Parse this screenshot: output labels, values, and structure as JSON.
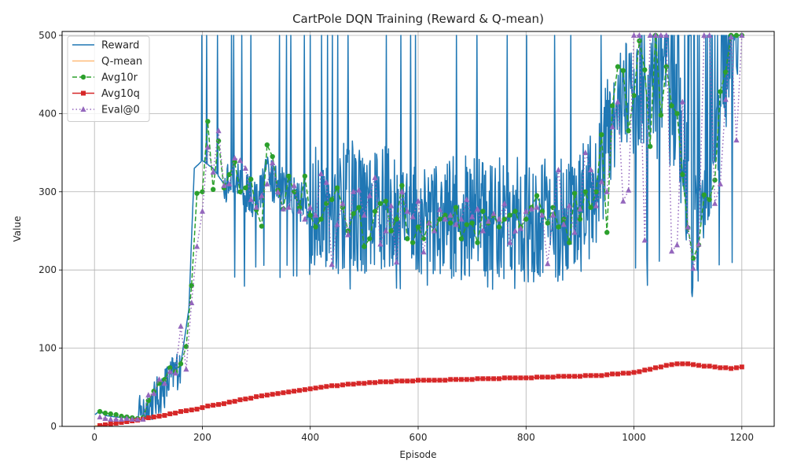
{
  "chart_data": {
    "type": "line",
    "title": "CartPole DQN Training (Reward & Q-mean)",
    "xlabel": "Episode",
    "ylabel": "Value",
    "xlim": [
      -60,
      1260
    ],
    "ylim": [
      0,
      505
    ],
    "xticks": [
      0,
      200,
      400,
      600,
      800,
      1000,
      1200
    ],
    "yticks": [
      0,
      100,
      200,
      300,
      400,
      500
    ],
    "grid": true,
    "legend_position": "top-left",
    "series": [
      {
        "name": "Reward",
        "color": "#1f77b4",
        "style": "solid",
        "anchors": [
          [
            1,
            15
          ],
          [
            10,
            20
          ],
          [
            20,
            14
          ],
          [
            40,
            12
          ],
          [
            60,
            11
          ],
          [
            80,
            10
          ],
          [
            100,
            25
          ],
          [
            120,
            40
          ],
          [
            140,
            60
          ],
          [
            160,
            80
          ],
          [
            175,
            150
          ],
          [
            185,
            330
          ],
          [
            200,
            340
          ],
          [
            220,
            330
          ],
          [
            240,
            310
          ],
          [
            260,
            315
          ],
          [
            280,
            300
          ],
          [
            300,
            285
          ],
          [
            320,
            320
          ],
          [
            340,
            310
          ],
          [
            360,
            300
          ],
          [
            380,
            290
          ],
          [
            400,
            280
          ],
          [
            420,
            285
          ],
          [
            440,
            275
          ],
          [
            460,
            280
          ],
          [
            480,
            285
          ],
          [
            500,
            275
          ],
          [
            520,
            280
          ],
          [
            540,
            285
          ],
          [
            560,
            270
          ],
          [
            580,
            275
          ],
          [
            600,
            265
          ],
          [
            620,
            260
          ],
          [
            640,
            270
          ],
          [
            660,
            265
          ],
          [
            680,
            270
          ],
          [
            700,
            268
          ],
          [
            720,
            262
          ],
          [
            740,
            270
          ],
          [
            760,
            265
          ],
          [
            780,
            268
          ],
          [
            800,
            262
          ],
          [
            820,
            260
          ],
          [
            840,
            265
          ],
          [
            860,
            262
          ],
          [
            880,
            268
          ],
          [
            900,
            275
          ],
          [
            920,
            300
          ],
          [
            940,
            330
          ],
          [
            960,
            400
          ],
          [
            980,
            430
          ],
          [
            1000,
            420
          ],
          [
            1020,
            440
          ],
          [
            1040,
            390
          ],
          [
            1060,
            420
          ],
          [
            1080,
            390
          ],
          [
            1100,
            300
          ],
          [
            1110,
            230
          ],
          [
            1120,
            260
          ],
          [
            1140,
            320
          ],
          [
            1160,
            380
          ],
          [
            1180,
            470
          ],
          [
            1200,
            500
          ]
        ],
        "noise": [
          0,
          100,
          1,
          100,
          100,
          300,
          300,
          250,
          290,
          290,
          290,
          290,
          300,
          300,
          190
        ],
        "values_summary": "per-episode reward, range approx 9 to 500"
      },
      {
        "name": "Q-mean",
        "color": "#ffbb78",
        "style": "solid",
        "anchors": [
          [
            1,
            1
          ],
          [
            20,
            1
          ],
          [
            100,
            11
          ],
          [
            200,
            25
          ],
          [
            300,
            38
          ],
          [
            400,
            48
          ],
          [
            500,
            55
          ],
          [
            600,
            58
          ],
          [
            700,
            60
          ],
          [
            800,
            62
          ],
          [
            900,
            64
          ],
          [
            950,
            66
          ],
          [
            1000,
            69
          ],
          [
            1040,
            74
          ],
          [
            1070,
            80
          ],
          [
            1090,
            80
          ],
          [
            1110,
            78
          ],
          [
            1150,
            76
          ],
          [
            1180,
            74
          ],
          [
            1200,
            76
          ]
        ]
      },
      {
        "name": "Avg10r",
        "color": "#2ca02c",
        "style": "dashed",
        "marker": "circle",
        "x": [
          10,
          20,
          30,
          40,
          50,
          60,
          70,
          80,
          90,
          100,
          110,
          120,
          130,
          140,
          150,
          160,
          170,
          180,
          190,
          200,
          210,
          220,
          230,
          240,
          250,
          260,
          270,
          280,
          290,
          300,
          310,
          320,
          330,
          340,
          350,
          360,
          370,
          380,
          390,
          400,
          410,
          420,
          430,
          440,
          450,
          460,
          470,
          480,
          490,
          500,
          510,
          520,
          530,
          540,
          550,
          560,
          570,
          580,
          590,
          600,
          610,
          620,
          630,
          640,
          650,
          660,
          670,
          680,
          690,
          700,
          710,
          720,
          730,
          740,
          750,
          760,
          770,
          780,
          790,
          800,
          810,
          820,
          830,
          840,
          850,
          860,
          870,
          880,
          890,
          900,
          910,
          920,
          930,
          940,
          950,
          960,
          970,
          980,
          990,
          1000,
          1010,
          1020,
          1030,
          1040,
          1050,
          1060,
          1070,
          1080,
          1090,
          1100,
          1110,
          1120,
          1130,
          1140,
          1150,
          1160,
          1170,
          1180,
          1190,
          1200
        ],
        "values": [
          19,
          17,
          16,
          15,
          13,
          12,
          11,
          10,
          11,
          33,
          45,
          55,
          60,
          75,
          70,
          80,
          102,
          180,
          298,
          300,
          390,
          303,
          365,
          305,
          322,
          338,
          300,
          305,
          316,
          277,
          256,
          360,
          345,
          302,
          278,
          320,
          300,
          280,
          320,
          270,
          255,
          265,
          285,
          290,
          305,
          280,
          250,
          272,
          280,
          230,
          240,
          275,
          285,
          288,
          250,
          265,
          308,
          240,
          235,
          255,
          240,
          260,
          250,
          265,
          270,
          260,
          280,
          240,
          258,
          260,
          235,
          275,
          260,
          270,
          255,
          265,
          270,
          275,
          255,
          265,
          280,
          295,
          275,
          260,
          280,
          255,
          265,
          235,
          298,
          265,
          300,
          280,
          300,
          373,
          248,
          410,
          460,
          455,
          378,
          423,
          493,
          456,
          358,
          500,
          398,
          460,
          410,
          400,
          322,
          254,
          215,
          232,
          296,
          290,
          315,
          428,
          453,
          500,
          500,
          500
        ]
      },
      {
        "name": "Avg10q",
        "color": "#d62728",
        "style": "solid",
        "marker": "square",
        "x": [
          10,
          20,
          30,
          40,
          50,
          60,
          70,
          80,
          90,
          100,
          110,
          120,
          130,
          140,
          150,
          160,
          170,
          180,
          190,
          200,
          210,
          220,
          230,
          240,
          250,
          260,
          270,
          280,
          290,
          300,
          310,
          320,
          330,
          340,
          350,
          360,
          370,
          380,
          390,
          400,
          410,
          420,
          430,
          440,
          450,
          460,
          470,
          480,
          490,
          500,
          510,
          520,
          530,
          540,
          550,
          560,
          570,
          580,
          590,
          600,
          610,
          620,
          630,
          640,
          650,
          660,
          670,
          680,
          690,
          700,
          710,
          720,
          730,
          740,
          750,
          760,
          770,
          780,
          790,
          800,
          810,
          820,
          830,
          840,
          850,
          860,
          870,
          880,
          890,
          900,
          910,
          920,
          930,
          940,
          950,
          960,
          970,
          980,
          990,
          1000,
          1010,
          1020,
          1030,
          1040,
          1050,
          1060,
          1070,
          1080,
          1090,
          1100,
          1110,
          1120,
          1130,
          1140,
          1150,
          1160,
          1170,
          1180,
          1190,
          1200
        ],
        "values": [
          1,
          2,
          3,
          4,
          5,
          6,
          7,
          8,
          9,
          11,
          12,
          13,
          14,
          16,
          17,
          19,
          20,
          21,
          22,
          24,
          26,
          27,
          28,
          29,
          31,
          32,
          34,
          35,
          36,
          38,
          39,
          40,
          41,
          42,
          43,
          44,
          45,
          46,
          47,
          48,
          49,
          50,
          51,
          52,
          52,
          53,
          54,
          54,
          55,
          55,
          56,
          56,
          57,
          57,
          57,
          58,
          58,
          58,
          58,
          59,
          59,
          59,
          59,
          59,
          59,
          60,
          60,
          60,
          60,
          60,
          61,
          61,
          61,
          61,
          61,
          62,
          62,
          62,
          62,
          62,
          62,
          63,
          63,
          63,
          63,
          64,
          64,
          64,
          64,
          64,
          65,
          65,
          65,
          65,
          66,
          67,
          67,
          68,
          68,
          69,
          70,
          72,
          73,
          75,
          76,
          78,
          79,
          80,
          80,
          80,
          79,
          78,
          77,
          77,
          76,
          75,
          75,
          74,
          75,
          76
        ]
      },
      {
        "name": "Eval@0",
        "color": "#9467bd",
        "style": "dotted",
        "marker": "triangle",
        "x": [
          10,
          20,
          30,
          40,
          50,
          60,
          70,
          80,
          90,
          100,
          110,
          120,
          130,
          140,
          150,
          160,
          170,
          180,
          190,
          200,
          210,
          220,
          230,
          240,
          250,
          260,
          270,
          280,
          290,
          300,
          310,
          320,
          330,
          340,
          350,
          360,
          370,
          380,
          390,
          400,
          410,
          420,
          430,
          440,
          450,
          460,
          470,
          480,
          490,
          500,
          510,
          520,
          530,
          540,
          550,
          560,
          570,
          580,
          590,
          600,
          610,
          620,
          630,
          640,
          650,
          660,
          670,
          680,
          690,
          700,
          710,
          720,
          730,
          740,
          750,
          760,
          770,
          780,
          790,
          800,
          810,
          820,
          830,
          840,
          850,
          860,
          870,
          880,
          890,
          900,
          910,
          920,
          930,
          940,
          950,
          960,
          970,
          980,
          990,
          1000,
          1010,
          1020,
          1030,
          1040,
          1050,
          1060,
          1070,
          1080,
          1090,
          1100,
          1110,
          1120,
          1130,
          1140,
          1150,
          1160,
          1170,
          1180,
          1190,
          1200
        ],
        "values": [
          12,
          10,
          9,
          9,
          9,
          10,
          9,
          9,
          9,
          40,
          42,
          60,
          55,
          70,
          68,
          128,
          73,
          158,
          230,
          275,
          357,
          325,
          378,
          308,
          310,
          343,
          340,
          330,
          290,
          280,
          295,
          310,
          337,
          300,
          278,
          280,
          308,
          275,
          265,
          280,
          270,
          323,
          312,
          207,
          258,
          285,
          245,
          300,
          302,
          270,
          295,
          318,
          233,
          250,
          282,
          210,
          300,
          275,
          268,
          288,
          223,
          260,
          250,
          277,
          265,
          270,
          258,
          265,
          290,
          268,
          278,
          250,
          262,
          272,
          265,
          285,
          235,
          250,
          253,
          275,
          278,
          280,
          270,
          208,
          270,
          328,
          258,
          282,
          248,
          278,
          350,
          328,
          282,
          313,
          300,
          383,
          415,
          288,
          302,
          500,
          500,
          238,
          500,
          500,
          500,
          500,
          224,
          232,
          415,
          255,
          202,
          233,
          500,
          500,
          285,
          310,
          418,
          498,
          366,
          500
        ]
      }
    ]
  }
}
